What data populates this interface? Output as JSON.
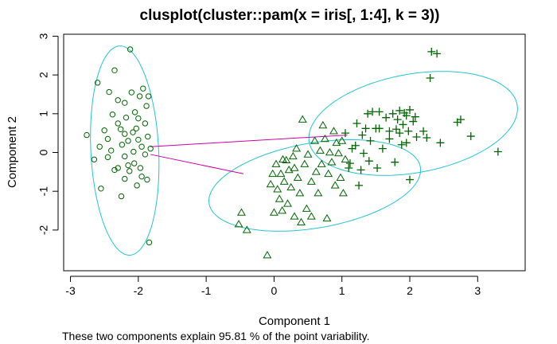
{
  "chart_data": {
    "type": "scatter",
    "title": "clusplot(cluster::pam(x = iris[, 1:4], k = 3))",
    "xlabel": "Component 1",
    "ylabel": "Component 2",
    "footnote": "These two components explain 95.81 % of the point variability.",
    "xlim": [
      -3.1,
      3.7
    ],
    "ylim": [
      -3.05,
      3.05
    ],
    "x_ticks": [
      -3,
      -2,
      -1,
      0,
      1,
      2,
      3
    ],
    "y_ticks": [
      -2,
      -1,
      0,
      1,
      2,
      3
    ],
    "x_tick_labels": [
      "-3",
      "-2",
      "-1",
      "0",
      "1",
      "2",
      "3"
    ],
    "y_tick_labels": [
      "-2",
      "-1",
      "0",
      "1",
      "2",
      "3"
    ],
    "grid": false,
    "legend": "none",
    "colors": {
      "points": "#006400",
      "ellipse": "#22c4d4",
      "connector": "#cc00aa",
      "axis": "#000000"
    },
    "ellipses": [
      {
        "cluster": 1,
        "center": [
          -2.2,
          0.05
        ],
        "semi_axes": [
          0.5,
          2.7
        ],
        "angle_deg": 1.5
      },
      {
        "cluster": 2,
        "center": [
          0.6,
          -0.85
        ],
        "semi_axes": [
          1.65,
          1.05
        ],
        "angle_deg": 25
      },
      {
        "cluster": 3,
        "center": [
          2.05,
          0.75
        ],
        "semi_axes": [
          1.65,
          1.2
        ],
        "angle_deg": 32
      }
    ],
    "connectors": [
      {
        "from": [
          -1.82,
          0.15
        ],
        "to": [
          1.08,
          0.45
        ]
      },
      {
        "from": [
          -1.82,
          -0.05
        ],
        "to": [
          -0.45,
          -0.55
        ]
      }
    ],
    "series": [
      {
        "marker": "circle",
        "points": [
          [
            -2.76,
            0.45
          ],
          [
            -2.6,
            1.8
          ],
          [
            -2.55,
            -0.93
          ],
          [
            -2.43,
            1.56
          ],
          [
            -2.35,
            2.12
          ],
          [
            -2.5,
            0.57
          ],
          [
            -2.45,
            0.35
          ],
          [
            -2.45,
            -0.12
          ],
          [
            -2.4,
            0.05
          ],
          [
            -2.35,
            -0.45
          ],
          [
            -2.3,
            0.75
          ],
          [
            -2.3,
            1.35
          ],
          [
            -2.3,
            -0.4
          ],
          [
            -2.26,
            0.6
          ],
          [
            -2.25,
            -1.13
          ],
          [
            -2.24,
            0.2
          ],
          [
            -2.2,
            1.28
          ],
          [
            -2.2,
            0.48
          ],
          [
            -2.2,
            -0.1
          ],
          [
            -2.2,
            -0.68
          ],
          [
            -2.18,
            0.9
          ],
          [
            -2.15,
            0.3
          ],
          [
            -2.13,
            -0.48
          ],
          [
            -2.12,
            2.66
          ],
          [
            -2.1,
            1.55
          ],
          [
            -2.08,
            0.52
          ],
          [
            -2.07,
            0.02
          ],
          [
            -2.06,
            -0.28
          ],
          [
            -2.05,
            1.04
          ],
          [
            -2.02,
            -0.85
          ],
          [
            -2.0,
            0.88
          ],
          [
            -2.0,
            0.33
          ],
          [
            -1.98,
            1.45
          ],
          [
            -1.97,
            -0.4
          ],
          [
            -1.95,
            -0.62
          ],
          [
            -1.95,
            0.15
          ],
          [
            -1.93,
            1.65
          ],
          [
            -1.9,
            0.75
          ],
          [
            -1.9,
            -0.05
          ],
          [
            -1.88,
            1.2
          ],
          [
            -1.87,
            -0.7
          ],
          [
            -1.86,
            0.41
          ],
          [
            -1.85,
            1.45
          ],
          [
            -1.84,
            -2.32
          ],
          [
            -1.82,
            0.1
          ],
          [
            -2.65,
            -0.18
          ],
          [
            -2.57,
            0.15
          ],
          [
            -2.38,
            0.98
          ],
          [
            -2.15,
            -0.33
          ],
          [
            -2.03,
            0.62
          ]
        ]
      },
      {
        "marker": "triangle",
        "points": [
          [
            -0.52,
            -1.85
          ],
          [
            -0.48,
            -1.55
          ],
          [
            -0.4,
            -2.0
          ],
          [
            -0.1,
            -2.65
          ],
          [
            -0.05,
            -0.82
          ],
          [
            -0.02,
            -0.55
          ],
          [
            0.0,
            -1.55
          ],
          [
            0.03,
            -0.3
          ],
          [
            0.05,
            -0.95
          ],
          [
            0.08,
            -1.2
          ],
          [
            0.1,
            -0.55
          ],
          [
            0.12,
            -1.5
          ],
          [
            0.13,
            -0.18
          ],
          [
            0.15,
            -0.75
          ],
          [
            0.18,
            -0.2
          ],
          [
            0.2,
            -1.32
          ],
          [
            0.22,
            -0.45
          ],
          [
            0.25,
            -0.9
          ],
          [
            0.28,
            -0.1
          ],
          [
            0.3,
            -1.65
          ],
          [
            0.3,
            -0.4
          ],
          [
            0.33,
            0.1
          ],
          [
            0.35,
            -0.65
          ],
          [
            0.38,
            -1.05
          ],
          [
            0.4,
            -1.8
          ],
          [
            0.42,
            0.85
          ],
          [
            0.45,
            -0.3
          ],
          [
            0.48,
            -1.45
          ],
          [
            0.5,
            -0.05
          ],
          [
            0.55,
            -0.75
          ],
          [
            0.55,
            -1.65
          ],
          [
            0.6,
            0.3
          ],
          [
            0.62,
            -0.5
          ],
          [
            0.65,
            -1.05
          ],
          [
            0.68,
            0.05
          ],
          [
            0.7,
            -0.3
          ],
          [
            0.72,
            0.7
          ],
          [
            0.75,
            0.35
          ],
          [
            0.78,
            -1.7
          ],
          [
            0.8,
            -0.55
          ],
          [
            0.82,
            0.0
          ],
          [
            0.85,
            -0.25
          ],
          [
            0.88,
            0.55
          ],
          [
            0.9,
            -0.85
          ],
          [
            0.92,
            0.25
          ],
          [
            0.95,
            -0.02
          ],
          [
            0.98,
            -0.65
          ],
          [
            1.0,
            0.3
          ],
          [
            1.02,
            -1.05
          ],
          [
            1.05,
            -0.18
          ]
        ]
      },
      {
        "marker": "plus",
        "points": [
          [
            1.05,
            0.5
          ],
          [
            1.1,
            -0.4
          ],
          [
            1.12,
            -0.28
          ],
          [
            1.15,
            0.1
          ],
          [
            1.2,
            0.18
          ],
          [
            1.22,
            0.75
          ],
          [
            1.25,
            -0.85
          ],
          [
            1.28,
            -0.45
          ],
          [
            1.3,
            0.45
          ],
          [
            1.32,
            -0.02
          ],
          [
            1.35,
            0.62
          ],
          [
            1.38,
            1.0
          ],
          [
            1.4,
            -0.22
          ],
          [
            1.42,
            0.3
          ],
          [
            1.45,
            1.05
          ],
          [
            1.5,
            0.62
          ],
          [
            1.52,
            -0.4
          ],
          [
            1.55,
            1.05
          ],
          [
            1.6,
            0.1
          ],
          [
            1.65,
            0.9
          ],
          [
            1.7,
            0.35
          ],
          [
            1.75,
            1.0
          ],
          [
            1.78,
            -0.25
          ],
          [
            1.8,
            0.6
          ],
          [
            1.82,
            0.85
          ],
          [
            1.85,
            0.5
          ],
          [
            1.88,
            0.2
          ],
          [
            1.9,
            0.72
          ],
          [
            1.92,
            1.02
          ],
          [
            1.95,
            0.25
          ],
          [
            1.98,
            0.55
          ],
          [
            2.0,
            -0.7
          ],
          [
            2.0,
            1.1
          ],
          [
            2.05,
            0.8
          ],
          [
            2.08,
            0.92
          ],
          [
            2.1,
            0.4
          ],
          [
            2.2,
            0.55
          ],
          [
            2.25,
            0.38
          ],
          [
            2.3,
            1.92
          ],
          [
            2.32,
            2.6
          ],
          [
            2.4,
            2.55
          ],
          [
            2.45,
            0.25
          ],
          [
            2.7,
            0.78
          ],
          [
            2.75,
            0.85
          ],
          [
            2.9,
            0.42
          ],
          [
            3.3,
            0.02
          ],
          [
            1.55,
            0.62
          ],
          [
            1.95,
            0.95
          ],
          [
            1.7,
            0.55
          ],
          [
            1.85,
            1.08
          ]
        ]
      }
    ]
  }
}
